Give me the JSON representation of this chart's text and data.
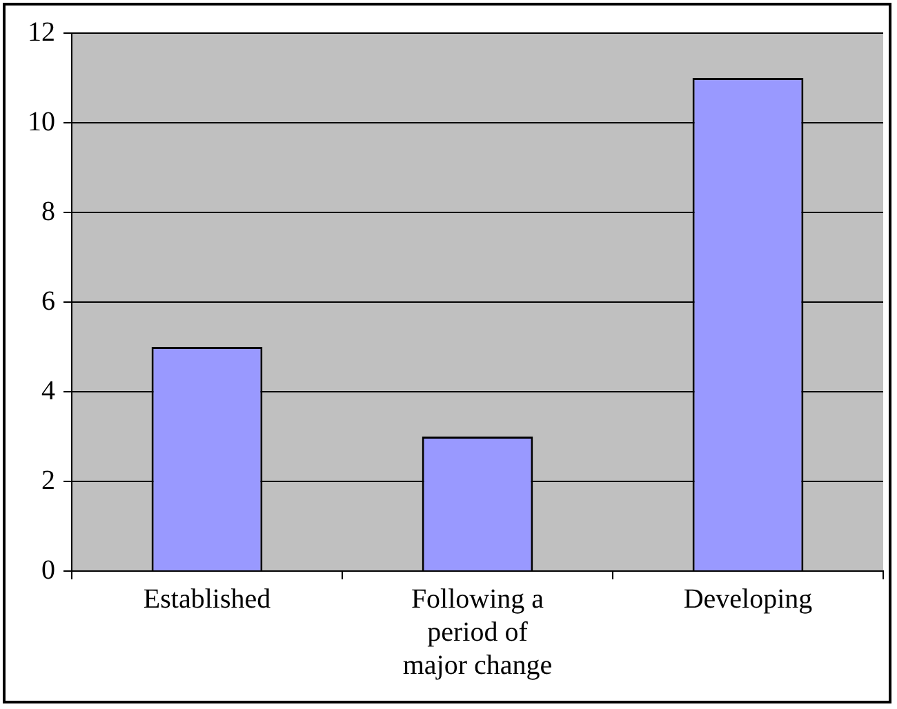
{
  "chart_data": {
    "type": "bar",
    "categories": [
      "Established",
      "Following a period of major change",
      "Developing"
    ],
    "values": [
      5,
      3,
      11
    ],
    "color": "#9999ff",
    "ylim": [
      0,
      12
    ],
    "yticks": [
      0,
      2,
      4,
      6,
      8,
      10,
      12
    ],
    "grid": "y",
    "legend": false
  }
}
